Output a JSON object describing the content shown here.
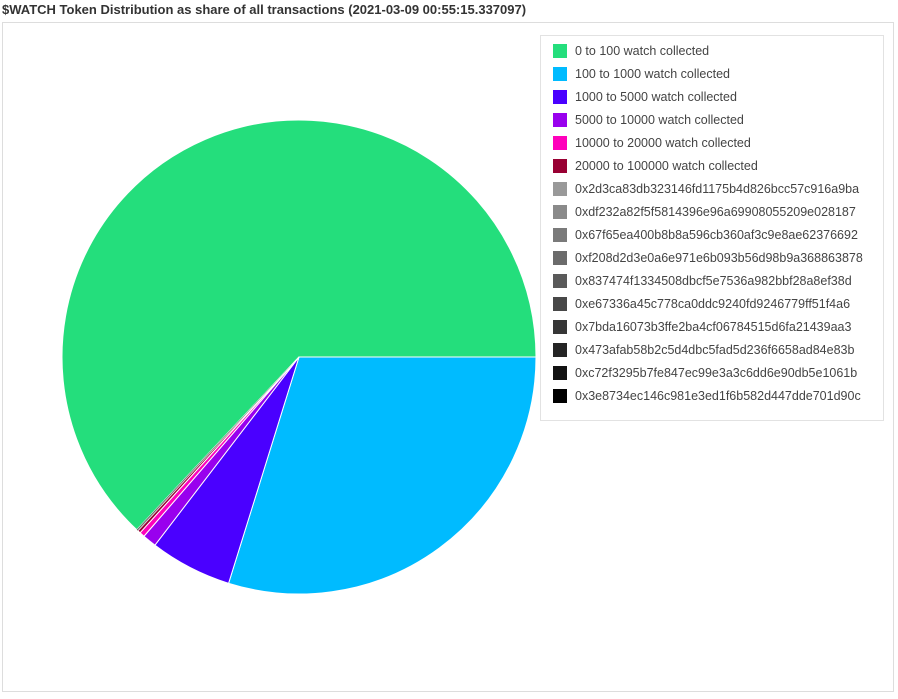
{
  "title": "$WATCH Token Distribution as share of all transactions (2021-03-09 00:55:15.337097)",
  "chart_data": {
    "type": "pie",
    "title": "$WATCH Token Distribution as share of all transactions (2021-03-09 00:55:15.337097)",
    "legend_position": "top-right",
    "slices": [
      {
        "label": "0 to 100 watch collected",
        "value": 63.0,
        "color": "#24de7c"
      },
      {
        "label": "100 to 1000 watch collected",
        "value": 29.8,
        "color": "#00bbff"
      },
      {
        "label": "1000 to 5000 watch collected",
        "value": 5.6,
        "color": "#4a00ff"
      },
      {
        "label": "5000 to 10000 watch collected",
        "value": 0.95,
        "color": "#9900ee"
      },
      {
        "label": "10000 to 20000 watch collected",
        "value": 0.35,
        "color": "#ff00bb"
      },
      {
        "label": "20000 to 100000 watch collected",
        "value": 0.2,
        "color": "#990033"
      },
      {
        "label": "0x2d3ca83db323146fd1175b4d826bcc57c916a9ba",
        "value": 0.01,
        "color": "#999999"
      },
      {
        "label": "0xdf232a82f5f5814396e96a69908055209e028187",
        "value": 0.01,
        "color": "#8a8a8a"
      },
      {
        "label": "0x67f65ea400b8b8a596cb360af3c9e8ae62376692",
        "value": 0.01,
        "color": "#7a7a7a"
      },
      {
        "label": "0xf208d2d3e0a6e971e6b093b56d98b9a368863878",
        "value": 0.01,
        "color": "#6b6b6b"
      },
      {
        "label": "0x837474f1334508dbcf5e7536a982bbf28a8ef38d",
        "value": 0.01,
        "color": "#5a5a5a"
      },
      {
        "label": "0xe67336a45c778ca0ddc9240fd9246779ff51f4a6",
        "value": 0.01,
        "color": "#484848"
      },
      {
        "label": "0x7bda16073b3ffe2ba4cf06784515d6fa21439aa3",
        "value": 0.01,
        "color": "#363636"
      },
      {
        "label": "0x473afab58b2c5d4dbc5fad5d236f6658ad84e83b",
        "value": 0.01,
        "color": "#242424"
      },
      {
        "label": "0xc72f3295b7fe847ec99e3a3c6dd6e90db5e1061b",
        "value": 0.01,
        "color": "#121212"
      },
      {
        "label": "0x3e8734ec146c981e3ed1f6b582d447dde701d90c",
        "value": 0.01,
        "color": "#000000"
      }
    ]
  }
}
